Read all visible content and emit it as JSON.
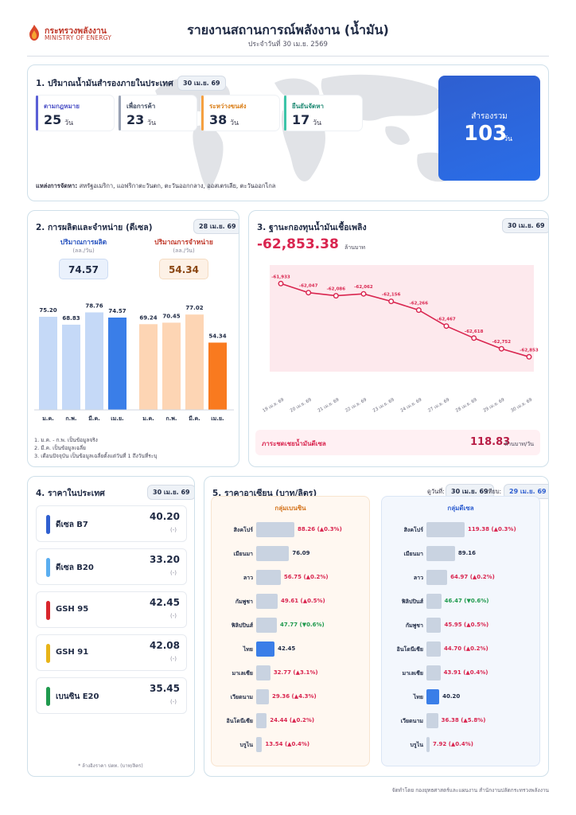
{
  "header": {
    "logo_th": "กระทรวงพลังงาน",
    "logo_en": "MINISTRY OF ENERGY",
    "title": "รายงานสถานการณ์พลังงาน (น้ำมัน)",
    "subtitle": "ประจำวันที่ 30 เม.ย. 2569"
  },
  "reserves": {
    "title": "1. ปริมาณน้ำมันสำรองภายในประเทศ",
    "date": "30 เม.ย. 69",
    "items": [
      {
        "label": "ตามกฎหมาย",
        "value": "25",
        "unit": "วัน",
        "color": "#5a5fd6"
      },
      {
        "label": "เพื่อการค้า",
        "value": "23",
        "unit": "วัน",
        "color": "#9aa3b5"
      },
      {
        "label": "ระหว่างขนส่ง",
        "value": "38",
        "unit": "วัน",
        "color": "#f5a040"
      },
      {
        "label": "ยืนยันจัดหา",
        "value": "17",
        "unit": "วัน",
        "color": "#3cc4a8"
      }
    ],
    "total_label": "สำรองรวม",
    "total_value": "103",
    "total_unit": "วัน",
    "source_label": "แหล่งการจัดหา:",
    "source_text": "สหรัฐอเมริกา, แอฟริกาตะวันตก, ตะวันออกกลาง, ออสเตรเลีย, ตะวันออกไกล"
  },
  "production": {
    "title": "2. การผลิตและจำหน่าย (ดีเซล)",
    "date": "28 เม.ย. 69",
    "prod_label": "ปริมาณการผลิต",
    "sales_label": "ปริมาณการจำหน่าย",
    "unit": "(ลล./วัน)",
    "prod_value": "74.57",
    "sales_value": "54.34",
    "notes": [
      "1. ม.ค. - ก.พ. เป็นข้อมูลจริง",
      "2. มี.ค. เป็นข้อมูลเฉลี่ย",
      "3. เดือนปัจจุบัน เป็นข้อมูลเฉลี่ยตั้งแต่วันที่ 1 ถึงวันที่ระบุ"
    ]
  },
  "chart_data": [
    {
      "type": "bar",
      "series": [
        {
          "name": "ปริมาณการผลิต",
          "categories": [
            "ม.ค.",
            "ก.พ.",
            "มี.ค.",
            "เม.ย."
          ],
          "values": [
            75.2,
            68.83,
            78.76,
            74.57
          ],
          "labels": [
            "75.20",
            "68.83",
            "78.76",
            "74.57"
          ]
        },
        {
          "name": "ปริมาณการจำหน่าย",
          "categories": [
            "ม.ค.",
            "ก.พ.",
            "มี.ค.",
            "เม.ย."
          ],
          "values": [
            69.24,
            70.45,
            77.02,
            54.34
          ],
          "labels": [
            "69.24",
            "70.45",
            "77.02",
            "54.34"
          ]
        }
      ],
      "ylim": [
        0,
        90
      ],
      "colors": {
        "prod": "#c5d9f7",
        "prod_current": "#3a7ee8",
        "sales": "#fdd5b4",
        "sales_current": "#f97a1f"
      }
    },
    {
      "type": "line",
      "x": [
        "19 เม.ย. 69",
        "20 เม.ย. 69",
        "21 เม.ย. 69",
        "22 เม.ย. 69",
        "23 เม.ย. 69",
        "24 เม.ย. 69",
        "27 เม.ย. 69",
        "28 เม.ย. 69",
        "29 เม.ย. 69",
        "30 เม.ย. 69"
      ],
      "values": [
        -61933,
        -62047,
        -62086,
        -62062,
        -62156,
        -62266,
        -62467,
        -62618,
        -62752,
        -62853
      ],
      "labels": [
        "-61,933",
        "-62,047",
        "-62,086",
        "-62,062",
        "-62,156",
        "-62,266",
        "-62,467",
        "-62,618",
        "-62,752",
        "-62,853"
      ],
      "color": "#d9254f"
    }
  ],
  "fund": {
    "title": "3. ฐานะกองทุนน้ำมันเชื้อเพลิง",
    "date": "30 เม.ย. 69",
    "value": "-62,853.38",
    "unit": "ล้านบาท",
    "subsidy_label": "ภาระชดเชยน้ำมันดีเซล",
    "subsidy_value": "118.83",
    "subsidy_unit": "ล้านบาท/วัน"
  },
  "domestic": {
    "title": "4. ราคาในประเทศ",
    "date": "30 เม.ย. 69",
    "items": [
      {
        "name": "ดีเซล B7",
        "price": "40.20",
        "change": "(-)",
        "color": "#2f5fd0"
      },
      {
        "name": "ดีเซล B20",
        "price": "33.20",
        "change": "(-)",
        "color": "#5aaef0"
      },
      {
        "name": "GSH 95",
        "price": "42.45",
        "change": "(-)",
        "color": "#d9262c"
      },
      {
        "name": "GSH 91",
        "price": "42.08",
        "change": "(-)",
        "color": "#e8b418"
      },
      {
        "name": "เบนซิน E20",
        "price": "35.45",
        "change": "(-)",
        "color": "#1f9a4e"
      }
    ],
    "note": "* ล้างอิงราคา ปตท. (บาท/ลิตร)"
  },
  "asean": {
    "title": "5. ราคาอาเซียน (บาท/ลิตร)",
    "date_label": "ดูวันที่:",
    "date": "30 เม.ย. 69",
    "compare_label": "เทียบ:",
    "compare_date": "29 เม.ย. 69",
    "gasoline": {
      "title": "กลุ่มเบนซิน",
      "rows": [
        {
          "country": "สิงคโปร์",
          "value": 88.26,
          "text": "88.26 (▲0.3%)",
          "trend": "up"
        },
        {
          "country": "เมียนมา",
          "value": 76.09,
          "text": "76.09",
          "trend": "none"
        },
        {
          "country": "ลาว",
          "value": 56.75,
          "text": "56.75 (▲0.2%)",
          "trend": "up"
        },
        {
          "country": "กัมพูชา",
          "value": 49.61,
          "text": "49.61 (▲0.5%)",
          "trend": "up"
        },
        {
          "country": "ฟิลิปปินส์",
          "value": 47.77,
          "text": "47.77 (▼0.6%)",
          "trend": "down"
        },
        {
          "country": "ไทย",
          "value": 42.45,
          "text": "42.45",
          "trend": "thai"
        },
        {
          "country": "มาเลเซีย",
          "value": 32.77,
          "text": "32.77 (▲3.1%)",
          "trend": "up"
        },
        {
          "country": "เวียดนาม",
          "value": 29.36,
          "text": "29.36 (▲4.3%)",
          "trend": "up"
        },
        {
          "country": "อินโดนีเซีย",
          "value": 24.44,
          "text": "24.44 (▲0.2%)",
          "trend": "up"
        },
        {
          "country": "บรูไน",
          "value": 13.54,
          "text": "13.54 (▲0.4%)",
          "trend": "up"
        }
      ]
    },
    "diesel": {
      "title": "กลุ่มดีเซล",
      "rows": [
        {
          "country": "สิงคโปร์",
          "value": 119.38,
          "text": "119.38 (▲0.3%)",
          "trend": "up"
        },
        {
          "country": "เมียนมา",
          "value": 89.16,
          "text": "89.16",
          "trend": "none"
        },
        {
          "country": "ลาว",
          "value": 64.97,
          "text": "64.97 (▲0.2%)",
          "trend": "up"
        },
        {
          "country": "ฟิลิปปินส์",
          "value": 46.47,
          "text": "46.47 (▼0.6%)",
          "trend": "down"
        },
        {
          "country": "กัมพูชา",
          "value": 45.95,
          "text": "45.95 (▲0.5%)",
          "trend": "up"
        },
        {
          "country": "อินโดนีเซีย",
          "value": 44.7,
          "text": "44.70 (▲0.2%)",
          "trend": "up"
        },
        {
          "country": "มาเลเซีย",
          "value": 43.91,
          "text": "43.91 (▲0.4%)",
          "trend": "up"
        },
        {
          "country": "ไทย",
          "value": 40.2,
          "text": "40.20",
          "trend": "thai"
        },
        {
          "country": "เวียดนาม",
          "value": 36.38,
          "text": "36.38 (▲5.8%)",
          "trend": "up"
        },
        {
          "country": "บรูไน",
          "value": 7.92,
          "text": "7.92 (▲0.4%)",
          "trend": "up"
        }
      ]
    }
  },
  "footer": "จัดทำโดย กองยุทธศาสตร์และแผนงาน สำนักงานปลัดกระทรวงพลังงาน"
}
